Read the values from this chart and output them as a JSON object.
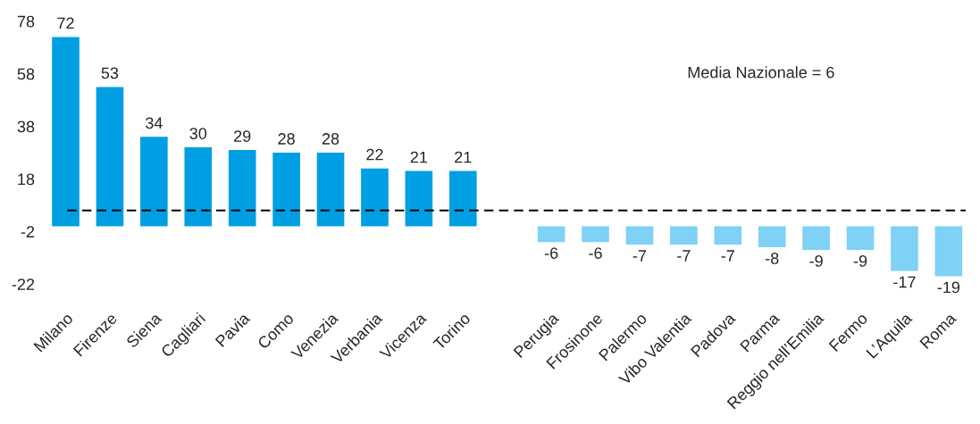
{
  "chart_data": {
    "type": "bar",
    "categories": [
      "Milano",
      "Firenze",
      "Siena",
      "Cagliari",
      "Pavia",
      "Como",
      "Venezia",
      "Verbania",
      "Vicenza",
      "Torino",
      null,
      "Perugia",
      "Frosinone",
      "Palermo",
      "Vibo Valentia",
      "Padova",
      "Parma",
      "Reggio nell’Emilia",
      "Fermo",
      "L’Aquila",
      "Roma"
    ],
    "values": [
      72,
      53,
      34,
      30,
      29,
      28,
      28,
      22,
      21,
      21,
      null,
      -6,
      -6,
      -7,
      -7,
      -7,
      -8,
      -9,
      -9,
      -17,
      -19
    ],
    "colors": [
      "#009fe3",
      "#009fe3",
      "#009fe3",
      "#009fe3",
      "#009fe3",
      "#009fe3",
      "#009fe3",
      "#009fe3",
      "#009fe3",
      "#009fe3",
      null,
      "#7fd1f5",
      "#7fd1f5",
      "#7fd1f5",
      "#7fd1f5",
      "#7fd1f5",
      "#7fd1f5",
      "#7fd1f5",
      "#7fd1f5",
      "#7fd1f5",
      "#7fd1f5"
    ],
    "ylim": [
      -22,
      78
    ],
    "yticks": [
      -22,
      -2,
      18,
      38,
      58,
      78
    ],
    "data_labels": true,
    "grid": false,
    "legend": false,
    "ref_lines": [
      {
        "axis": "y",
        "value": 6,
        "label": "Media Nazionale = 6",
        "color": "#000000",
        "line_style": "dashed"
      }
    ]
  }
}
